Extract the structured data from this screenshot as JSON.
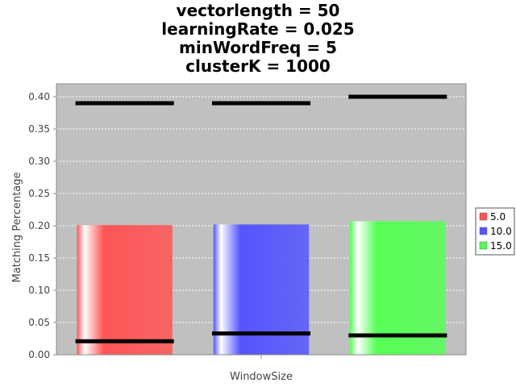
{
  "chart_data": {
    "type": "bar",
    "title_lines": [
      "vectorlength = 50",
      "learningRate = 0.025",
      "minWordFreq = 5",
      "clusterK = 1000"
    ],
    "xlabel": "WindowSize",
    "ylabel": "Matching Percentage",
    "ylim": [
      0,
      0.42
    ],
    "yticks": [
      "0.00",
      "0.05",
      "0.10",
      "0.15",
      "0.20",
      "0.25",
      "0.30",
      "0.35",
      "0.40"
    ],
    "grid": true,
    "legend_placement": "right",
    "series": [
      {
        "name": "5.0",
        "value": 0.201,
        "min": 0.021,
        "max": 0.39,
        "color": "#ff5555"
      },
      {
        "name": "10.0",
        "value": 0.202,
        "min": 0.033,
        "max": 0.39,
        "color": "#5555ff"
      },
      {
        "name": "15.0",
        "value": 0.207,
        "min": 0.03,
        "max": 0.4,
        "color": "#55ff55"
      }
    ]
  }
}
